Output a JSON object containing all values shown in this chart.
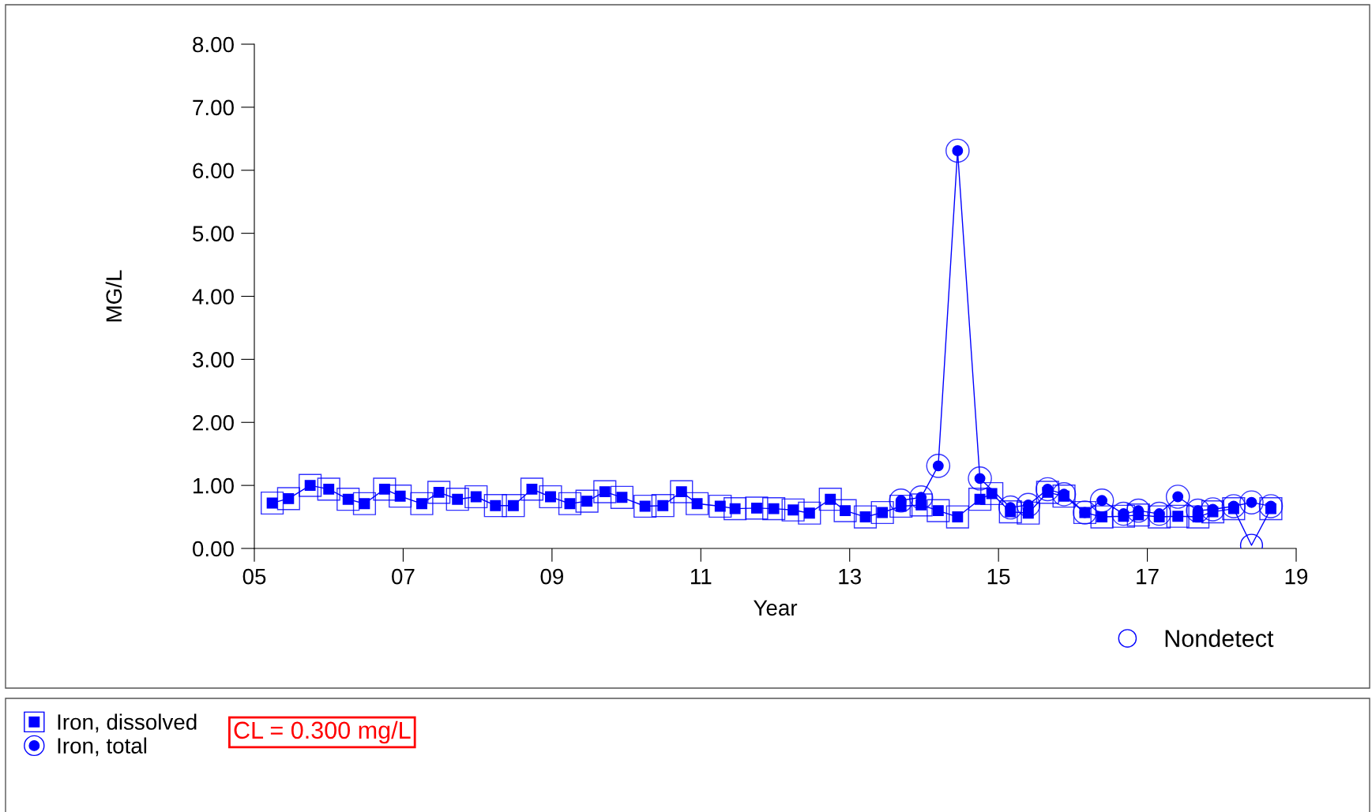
{
  "chart_data": {
    "type": "line",
    "xlabel": "Year",
    "ylabel": "MG/L",
    "xlim": [
      5,
      19
    ],
    "ylim": [
      0,
      8
    ],
    "xticks": [
      {
        "value": 5,
        "label": "05"
      },
      {
        "value": 7,
        "label": "07"
      },
      {
        "value": 9,
        "label": "09"
      },
      {
        "value": 11,
        "label": "11"
      },
      {
        "value": 13,
        "label": "13"
      },
      {
        "value": 15,
        "label": "15"
      },
      {
        "value": 17,
        "label": "17"
      },
      {
        "value": 19,
        "label": "19"
      }
    ],
    "yticks": [
      {
        "value": 0,
        "label": "0.00"
      },
      {
        "value": 1,
        "label": "1.00"
      },
      {
        "value": 2,
        "label": "2.00"
      },
      {
        "value": 3,
        "label": "3.00"
      },
      {
        "value": 4,
        "label": "4.00"
      },
      {
        "value": 5,
        "label": "5.00"
      },
      {
        "value": 6,
        "label": "6.00"
      },
      {
        "value": 7,
        "label": "7.00"
      },
      {
        "value": 8,
        "label": "8.00"
      }
    ],
    "grid": false,
    "legend": "bottom left",
    "annotations": [
      "CL = 0.300 mg/L"
    ],
    "series": [
      {
        "name": "Iron, dissolved",
        "color": "#0000ff",
        "marker": "square",
        "x": [
          5.24,
          5.46,
          5.75,
          6.0,
          6.26,
          6.48,
          6.75,
          6.96,
          7.25,
          7.48,
          7.73,
          7.98,
          8.24,
          8.48,
          8.73,
          8.98,
          9.24,
          9.47,
          9.71,
          9.94,
          10.25,
          10.49,
          10.74,
          10.95,
          11.26,
          11.46,
          11.75,
          11.98,
          12.24,
          12.46,
          12.74,
          12.94,
          13.21,
          13.44,
          13.69,
          13.96,
          14.19,
          14.45,
          14.75,
          14.91,
          15.16,
          15.4,
          15.66,
          15.88,
          16.16,
          16.39,
          16.68,
          16.88,
          17.16,
          17.41,
          17.68,
          17.88,
          18.16,
          18.4,
          18.66
        ],
        "values": [
          0.72,
          0.79,
          1.0,
          0.94,
          0.78,
          0.71,
          0.94,
          0.83,
          0.71,
          0.89,
          0.78,
          0.82,
          0.68,
          0.68,
          0.94,
          0.82,
          0.71,
          0.75,
          0.9,
          0.81,
          0.67,
          0.68,
          0.9,
          0.71,
          0.67,
          0.63,
          0.64,
          0.63,
          0.61,
          0.56,
          0.78,
          0.6,
          0.5,
          0.57,
          0.67,
          0.69,
          0.6,
          0.5,
          0.78,
          0.87,
          0.58,
          0.56,
          0.89,
          0.83,
          0.57,
          0.5,
          0.51,
          0.53,
          0.5,
          0.51,
          0.5,
          0.58,
          0.63,
          0.05,
          0.63
        ]
      },
      {
        "name": "Iron, total",
        "color": "#0000ff",
        "marker": "circle",
        "x": [
          13.69,
          13.96,
          14.19,
          14.45,
          14.75,
          15.16,
          15.4,
          15.66,
          15.88,
          16.16,
          16.39,
          16.68,
          16.88,
          17.16,
          17.41,
          17.68,
          17.88,
          18.16,
          18.4,
          18.66
        ],
        "values": [
          0.76,
          0.81,
          1.31,
          6.31,
          1.11,
          0.65,
          0.69,
          0.94,
          0.86,
          0.57,
          0.76,
          0.55,
          0.6,
          0.55,
          0.82,
          0.6,
          0.62,
          0.67,
          0.73,
          0.67
        ]
      },
      {
        "name": "Nondetect",
        "type": "scatter",
        "color": "#0000ff",
        "marker": "circle",
        "x": [
          18.4
        ],
        "values": [
          0.05
        ]
      }
    ]
  }
}
